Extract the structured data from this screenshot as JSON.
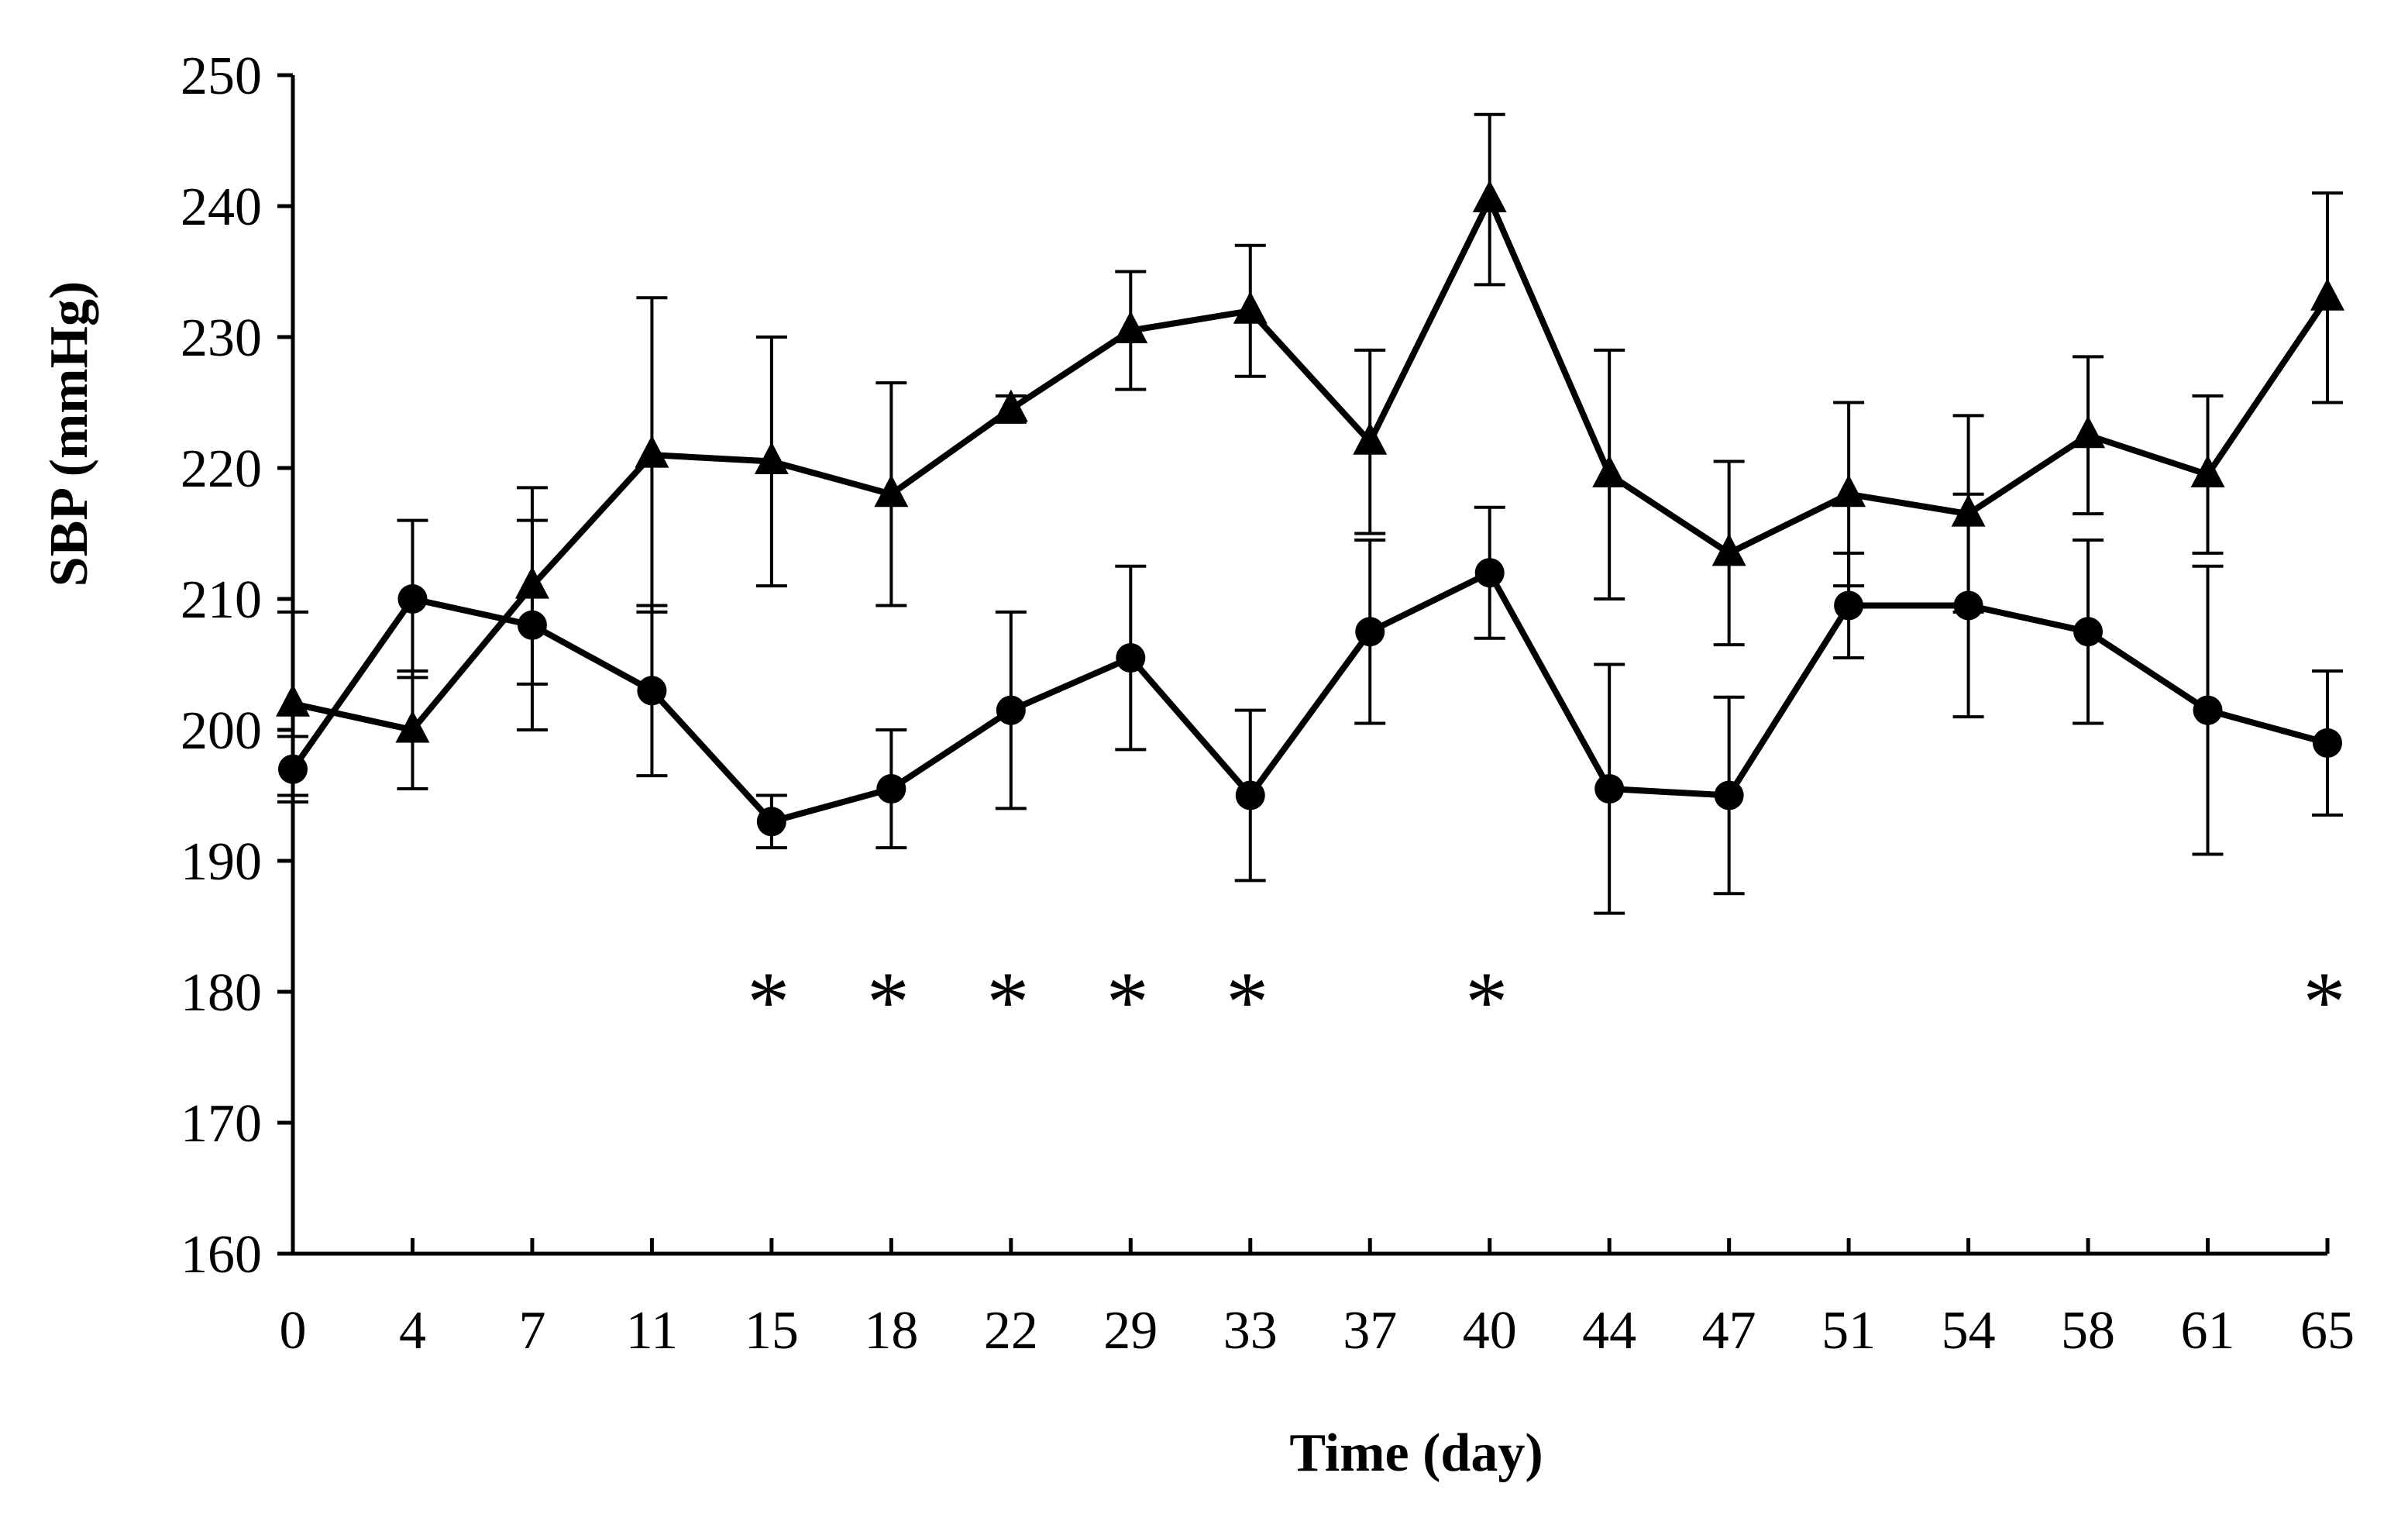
{
  "chart_data": {
    "type": "line",
    "title": "",
    "xlabel": "Time (day)",
    "ylabel": "SBP (mmHg)",
    "ylim": [
      160,
      250
    ],
    "yticks": [
      160,
      170,
      180,
      190,
      200,
      210,
      220,
      230,
      240,
      250
    ],
    "categories": [
      "0",
      "4",
      "7",
      "11",
      "15",
      "18",
      "22",
      "29",
      "33",
      "37",
      "40",
      "44",
      "47",
      "51",
      "54",
      "58",
      "61",
      "65"
    ],
    "grid": false,
    "legend": "none",
    "series": [
      {
        "name": "triangle",
        "marker": "triangle",
        "values": [
          202,
          200,
          211,
          221,
          220.5,
          218,
          224.5,
          230.5,
          232,
          222,
          240.5,
          219.5,
          213.5,
          218,
          216.5,
          222.5,
          219.5,
          233
        ],
        "errors": [
          7,
          4.5,
          7.5,
          12,
          9.5,
          8.5,
          1,
          4.5,
          5,
          7,
          6.5,
          9.5,
          7,
          7,
          7.5,
          6,
          6,
          8
        ]
      },
      {
        "name": "circle",
        "marker": "circle",
        "values": [
          197,
          210,
          208,
          203,
          193,
          195.5,
          201.5,
          205.5,
          195,
          207.5,
          212,
          195.5,
          195,
          209.5,
          209.5,
          207.5,
          201.5,
          199
        ],
        "errors": [
          2.5,
          6,
          8,
          6.5,
          2,
          4.5,
          7.5,
          7,
          6.5,
          7,
          5,
          9.5,
          7.5,
          4,
          8.5,
          7,
          11,
          5.5
        ]
      }
    ],
    "significance_marker": "*",
    "significant_categories": [
      "15",
      "18",
      "22",
      "29",
      "33",
      "40",
      "65"
    ]
  }
}
